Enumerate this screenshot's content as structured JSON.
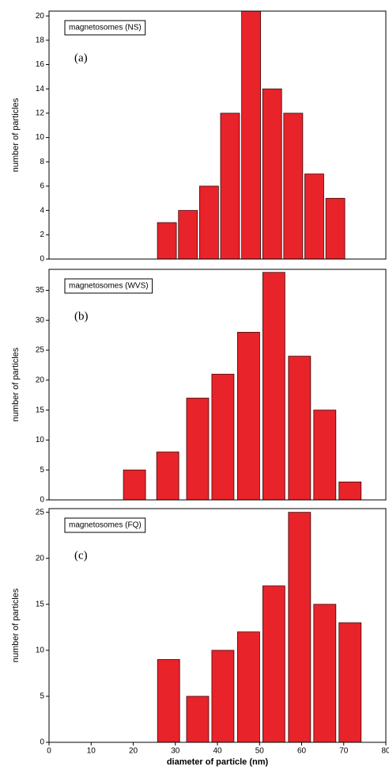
{
  "chart_data": [
    {
      "type": "bar",
      "title": "magnetosomes (NS)",
      "annotation": "(a)",
      "ylabel": "number of particles",
      "x": [
        28,
        33,
        38,
        43,
        48,
        53,
        58,
        63,
        68
      ],
      "values": [
        3,
        4,
        6,
        12,
        21,
        14,
        12,
        7,
        5
      ],
      "color": "#e8232a",
      "xlim": [
        0,
        80
      ],
      "ylim": [
        0,
        20.4
      ],
      "yticks": [
        0,
        2,
        4,
        6,
        8,
        10,
        12,
        14,
        16,
        18,
        20
      ]
    },
    {
      "type": "bar",
      "title": "magnetosomes (WVS)",
      "annotation": "(b)",
      "ylabel": "number of particles",
      "x": [
        20.3,
        28.2,
        35.3,
        41.3,
        47.4,
        53.4,
        59.5,
        65.5,
        71.5
      ],
      "values": [
        5,
        8,
        17,
        21,
        28,
        38,
        24,
        15,
        3
      ],
      "color": "#e8232a",
      "xlim": [
        0,
        80
      ],
      "ylim": [
        0,
        38.5
      ],
      "yticks": [
        0,
        5,
        10,
        15,
        20,
        25,
        30,
        35
      ]
    },
    {
      "type": "bar",
      "title": "magnetosomes (FQ)",
      "annotation": "(c)",
      "ylabel": "number of particles",
      "xlabel": "diameter of particle (nm)",
      "x": [
        28.4,
        35.3,
        41.3,
        47.4,
        53.4,
        59.5,
        65.5,
        71.5
      ],
      "values": [
        9,
        5,
        10,
        12,
        17,
        25,
        15,
        13
      ],
      "color": "#e8232a",
      "xlim": [
        0,
        80
      ],
      "ylim": [
        0,
        25.4
      ],
      "yticks": [
        0,
        5,
        10,
        15,
        20,
        25
      ],
      "xticks": [
        0,
        10,
        20,
        30,
        40,
        50,
        60,
        70,
        80
      ]
    }
  ]
}
